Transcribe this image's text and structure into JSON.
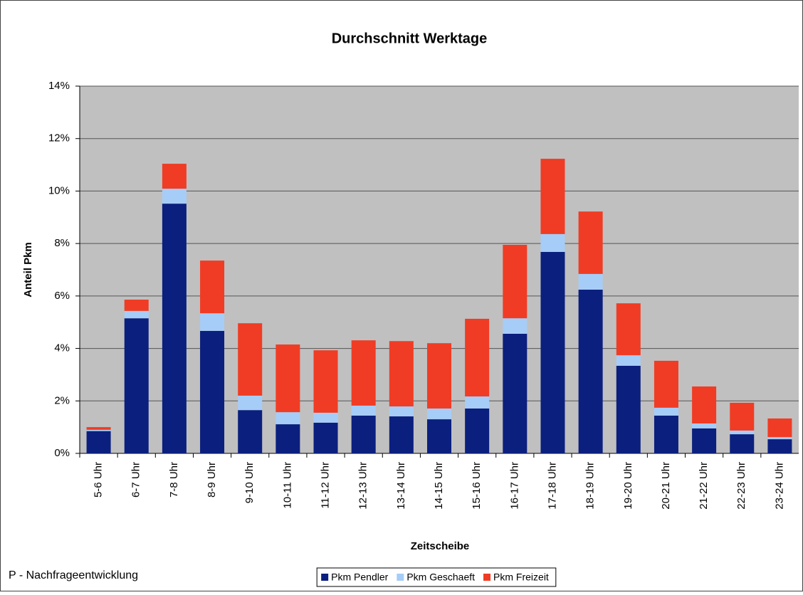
{
  "chart_data": {
    "type": "stacked_bar",
    "title": "Durchschnitt Werktage",
    "y_label": "Anteil Pkm",
    "x_label": "Zeitscheibe",
    "footer": "P - Nachfrageentwicklung",
    "categories": [
      "5-6 Uhr",
      "6-7 Uhr",
      "7-8 Uhr",
      "8-9 Uhr",
      "9-10 Uhr",
      "10-11 Uhr",
      "11-12 Uhr",
      "12-13 Uhr",
      "13-14 Uhr",
      "14-15 Uhr",
      "15-16 Uhr",
      "16-17 Uhr",
      "17-18 Uhr",
      "18-19 Uhr",
      "19-20 Uhr",
      "20-21 Uhr",
      "21-22 Uhr",
      "22-23 Uhr",
      "23-24 Uhr"
    ],
    "series": [
      {
        "name": "Pkm Pendler",
        "color": "#0b1f7e",
        "values": [
          0.85,
          5.15,
          9.52,
          4.67,
          1.65,
          1.11,
          1.17,
          1.44,
          1.41,
          1.3,
          1.71,
          4.56,
          7.68,
          6.24,
          3.34,
          1.44,
          0.95,
          0.73,
          0.54
        ]
      },
      {
        "name": "Pkm Geschaeft",
        "color": "#a6cdf7",
        "values": [
          0.05,
          0.28,
          0.57,
          0.67,
          0.55,
          0.46,
          0.38,
          0.38,
          0.38,
          0.41,
          0.46,
          0.59,
          0.68,
          0.6,
          0.4,
          0.3,
          0.19,
          0.14,
          0.08
        ]
      },
      {
        "name": "Pkm Freizeit",
        "color": "#f03c24",
        "values": [
          0.1,
          0.43,
          0.95,
          2.01,
          2.76,
          2.58,
          2.38,
          2.49,
          2.49,
          2.49,
          2.96,
          2.8,
          2.87,
          2.38,
          1.98,
          1.79,
          1.41,
          1.06,
          0.71
        ]
      }
    ],
    "ylim": [
      0,
      14
    ],
    "yticks": [
      {
        "value": 0,
        "label": "0%"
      },
      {
        "value": 2,
        "label": "2%"
      },
      {
        "value": 4,
        "label": "4%"
      },
      {
        "value": 6,
        "label": "6%"
      },
      {
        "value": 8,
        "label": "8%"
      },
      {
        "value": 10,
        "label": "10%"
      },
      {
        "value": 12,
        "label": "12%"
      },
      {
        "value": 14,
        "label": "14%"
      }
    ],
    "grid": true,
    "legend": "bottom",
    "plot_background": "#c0c0c0"
  }
}
